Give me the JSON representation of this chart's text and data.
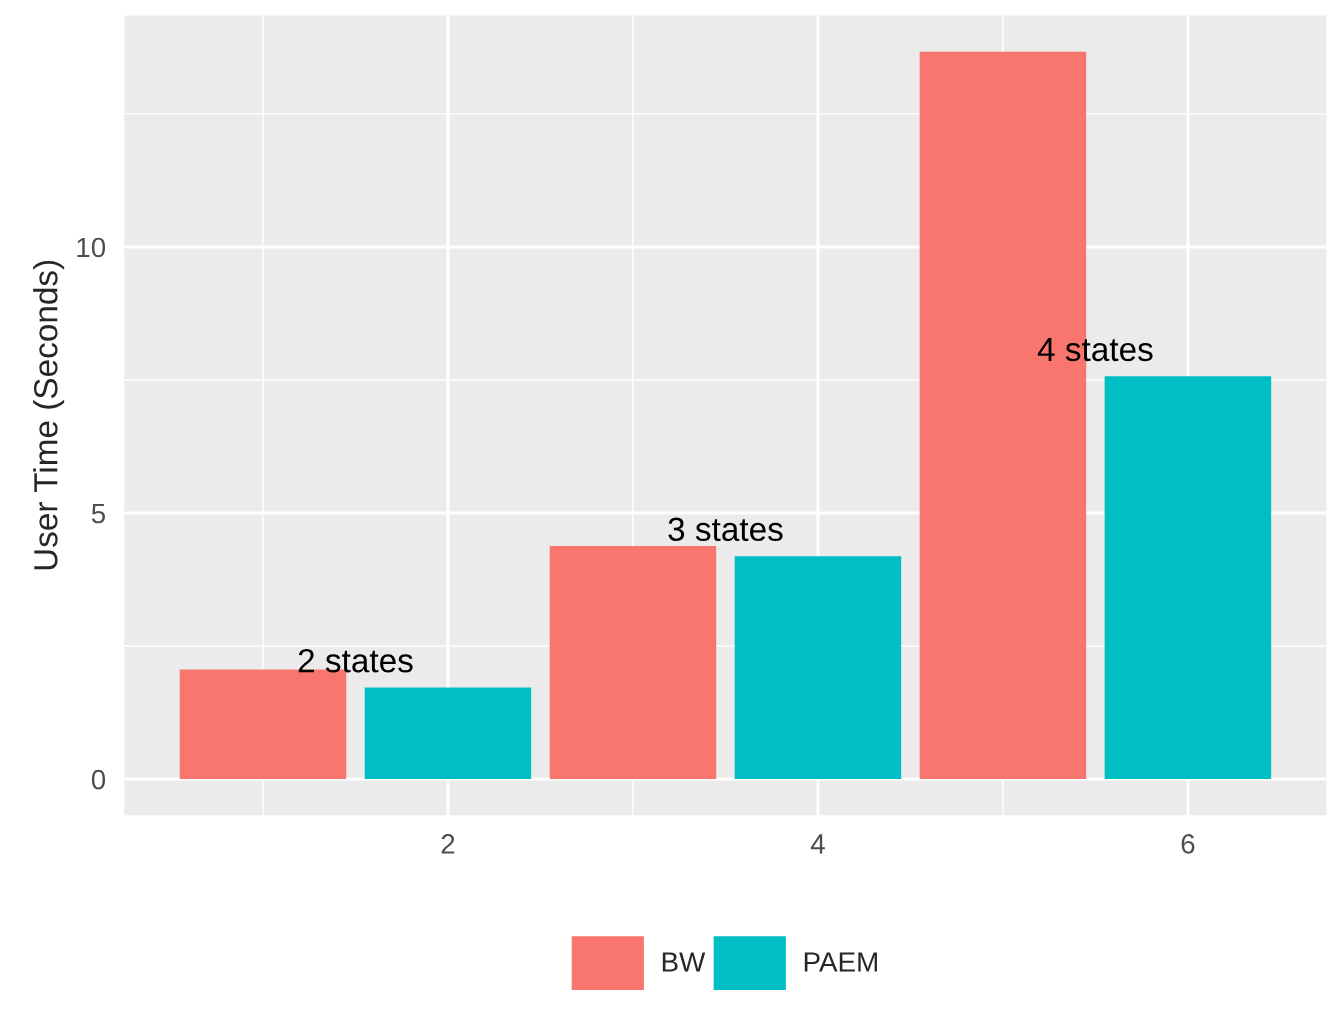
{
  "chart_data": {
    "type": "bar",
    "ylabel": "User Time (Seconds)",
    "series": [
      {
        "name": "BW",
        "color": "#f8766d",
        "x": [
          1,
          3,
          5
        ],
        "values": [
          2.06,
          4.38,
          13.67
        ]
      },
      {
        "name": "PAEM",
        "color": "#00bfc4",
        "x": [
          2,
          4,
          6
        ],
        "values": [
          1.72,
          4.19,
          7.57
        ]
      }
    ],
    "xlim": [
      0.25,
      6.75
    ],
    "xticks": [
      2,
      4,
      6
    ],
    "ylim": [
      -0.68,
      14.35
    ],
    "yticks": [
      0,
      5,
      10
    ],
    "annotations": [
      "2 states",
      "3 states",
      "4 states"
    ],
    "grid": true,
    "legend": "bottom"
  }
}
